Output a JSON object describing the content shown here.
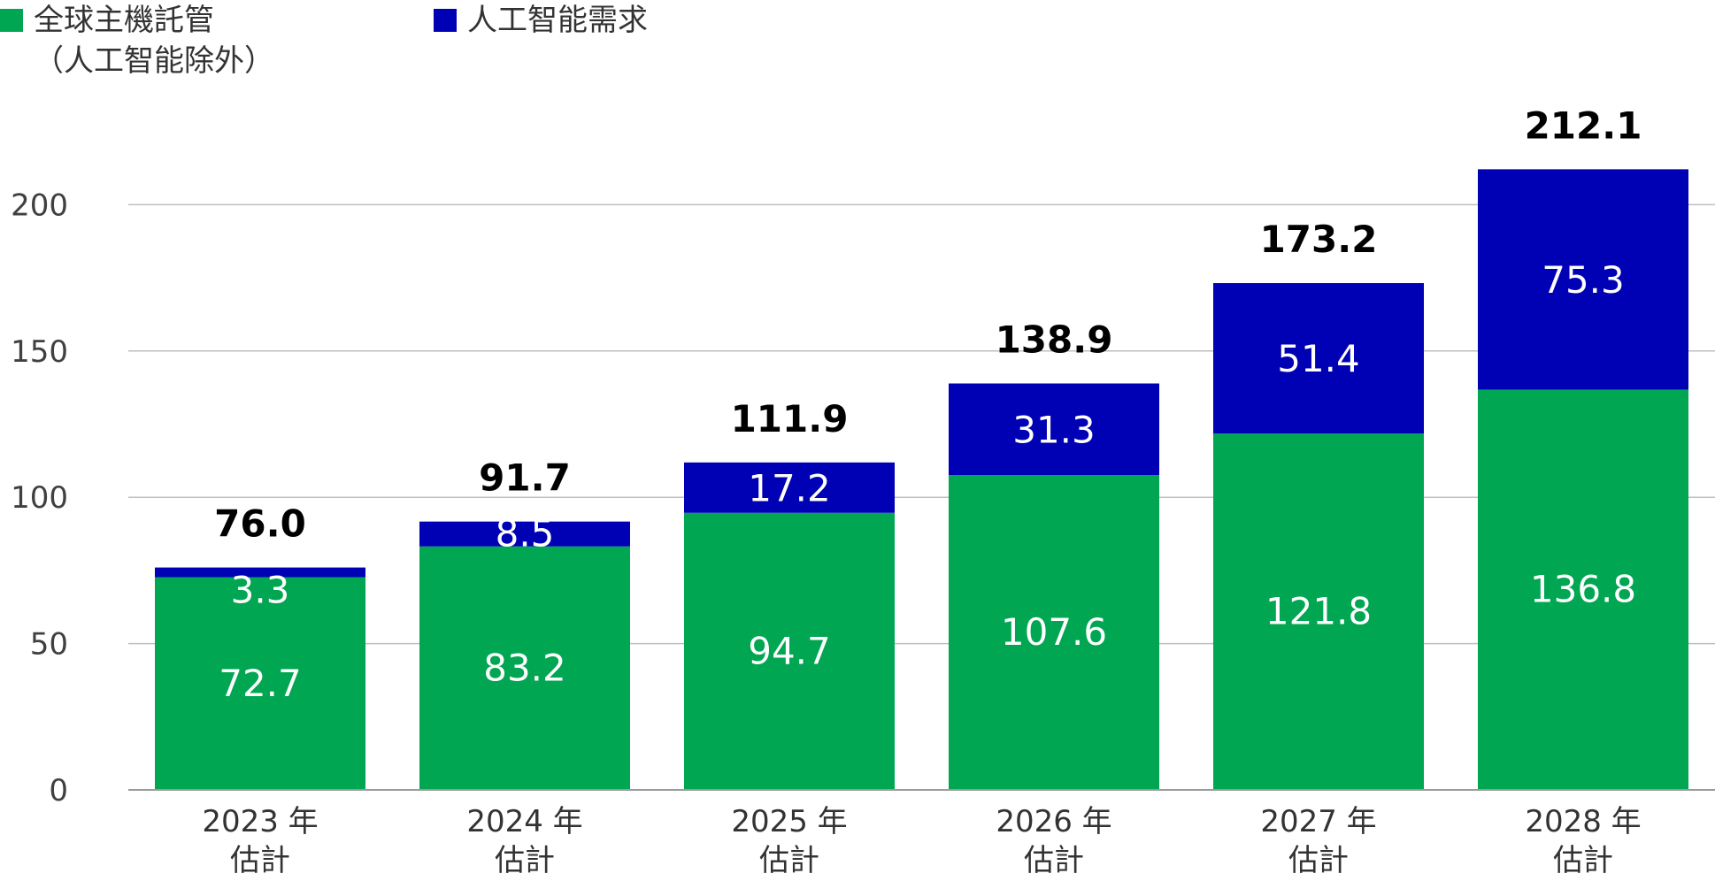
{
  "chart_data": {
    "type": "bar",
    "stacked": true,
    "categories": [
      [
        "2023 年",
        "估計"
      ],
      [
        "2024 年",
        "估計"
      ],
      [
        "2025 年",
        "估計"
      ],
      [
        "2026 年",
        "估計"
      ],
      [
        "2027 年",
        "估計"
      ],
      [
        "2028 年",
        "估計"
      ]
    ],
    "series": [
      {
        "name": "全球主機託管\n（人工智能除外）",
        "color": "#00a651",
        "values": [
          72.7,
          83.2,
          94.7,
          107.6,
          121.8,
          136.8
        ]
      },
      {
        "name": "人工智能需求",
        "color": "#0000b4",
        "values": [
          3.3,
          8.5,
          17.2,
          31.3,
          51.4,
          75.3
        ]
      }
    ],
    "totals": [
      "76.0",
      "91.7",
      "111.9",
      "138.9",
      "173.2",
      "212.1"
    ],
    "segment_labels": [
      [
        "72.7",
        "83.2",
        "94.7",
        "107.6",
        "121.8",
        "136.8"
      ],
      [
        "3.3",
        "8.5",
        "17.2",
        "31.3",
        "51.4",
        "75.3"
      ]
    ],
    "yticks": [
      0,
      50,
      100,
      150,
      200
    ],
    "ylim": [
      0,
      212.1
    ],
    "grid": true,
    "legend_position": "top-left",
    "title": "",
    "xlabel": "",
    "ylabel": ""
  }
}
